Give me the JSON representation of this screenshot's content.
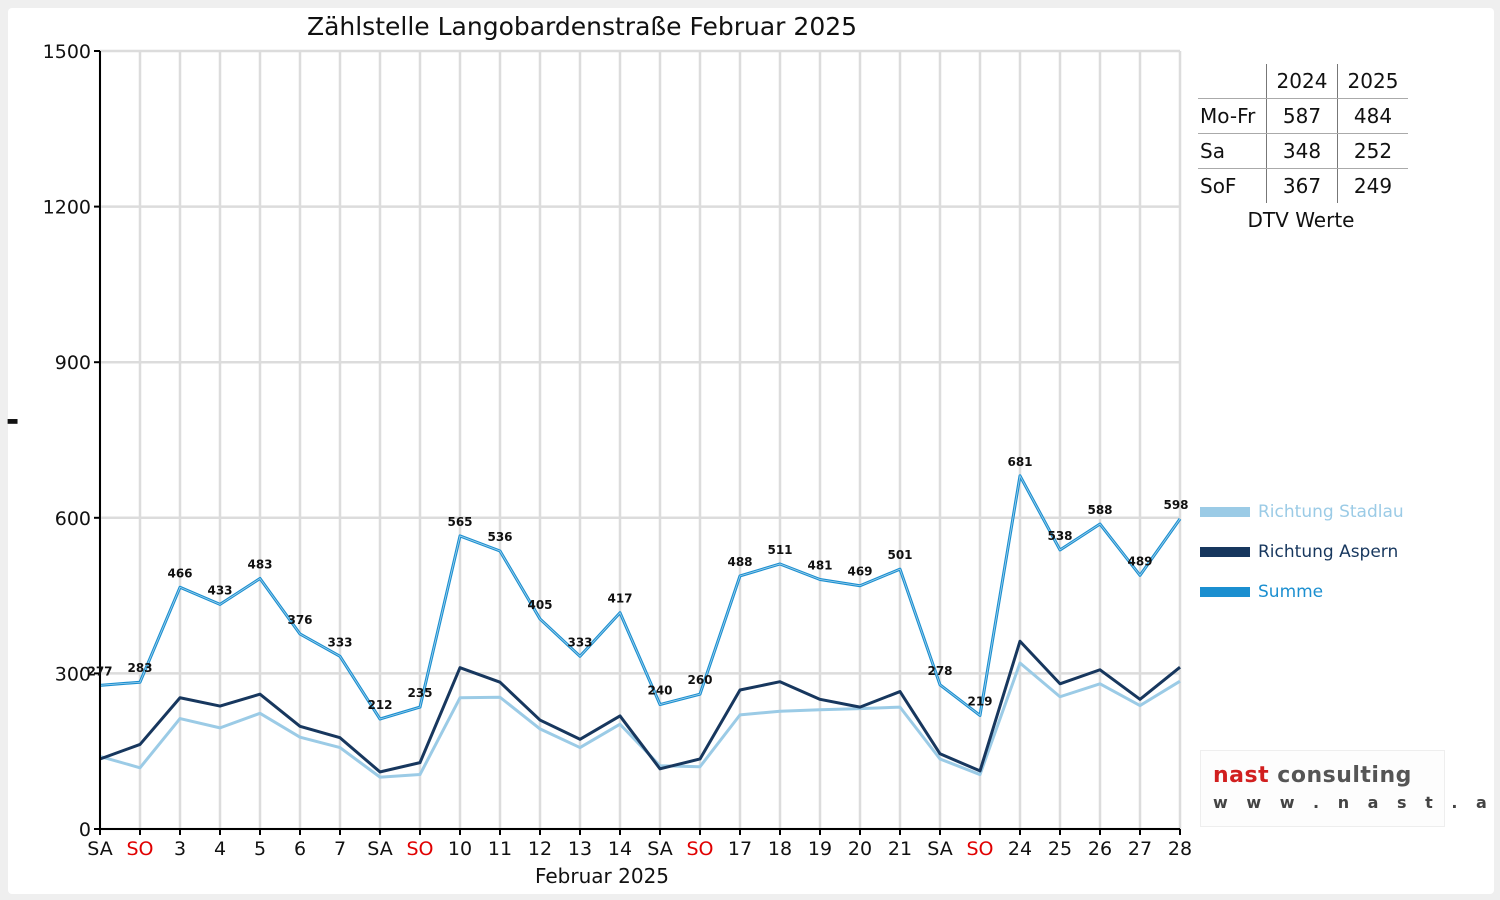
{
  "title": "Zählstelle Langobardenstraße Februar 2025",
  "xlabel": "Februar 2025",
  "dtv_table": {
    "headers": [
      "",
      "2024",
      "2025"
    ],
    "rows": [
      {
        "label": "Mo-Fr",
        "v2024": "587",
        "v2025": "484"
      },
      {
        "label": "Sa",
        "v2024": "348",
        "v2025": "252"
      },
      {
        "label": "SoF",
        "v2024": "367",
        "v2025": "249"
      }
    ],
    "caption": "DTV Werte"
  },
  "logo": {
    "brand_red": "nast",
    "brand_rest": " consulting",
    "url": "w w w . n a s t . a t"
  },
  "colors": {
    "stadlau": "#9bcbe6",
    "aspern": "#17375e",
    "summe": "#1b8fd0",
    "sunday": "#e00000",
    "grid": "#dcdcdc",
    "axis": "#000000"
  },
  "chart_data": {
    "type": "line",
    "title": "Zählstelle Langobardenstraße Februar 2025",
    "xlabel": "Februar 2025",
    "ylabel": "",
    "ylim": [
      0,
      1500
    ],
    "yticks": [
      0,
      300,
      600,
      900,
      1200,
      1500
    ],
    "grid": true,
    "legend_position": "right",
    "categories": [
      "SA",
      "SO",
      "3",
      "4",
      "5",
      "6",
      "7",
      "SA",
      "SO",
      "10",
      "11",
      "12",
      "13",
      "14",
      "SA",
      "SO",
      "17",
      "18",
      "19",
      "20",
      "21",
      "SA",
      "SO",
      "24",
      "25",
      "26",
      "27",
      "28"
    ],
    "sunday_flags": [
      false,
      true,
      false,
      false,
      false,
      false,
      false,
      false,
      true,
      false,
      false,
      false,
      false,
      false,
      false,
      true,
      false,
      false,
      false,
      false,
      false,
      false,
      true,
      false,
      false,
      false,
      false,
      false
    ],
    "series": [
      {
        "name": "Richtung Stadlau",
        "values": [
          140,
          118,
          213,
          195,
          223,
          177,
          157,
          100,
          105,
          253,
          254,
          193,
          157,
          202,
          122,
          120,
          220,
          227,
          230,
          232,
          235,
          135,
          105,
          320,
          255,
          280,
          238,
          285
        ]
      },
      {
        "name": "Richtung Aspern",
        "values": [
          135,
          163,
          253,
          237,
          260,
          198,
          176,
          110,
          128,
          311,
          283,
          210,
          173,
          218,
          116,
          135,
          268,
          284,
          250,
          235,
          265,
          145,
          112,
          362,
          280,
          307,
          250,
          312
        ]
      },
      {
        "name": "Summe",
        "values": [
          277,
          283,
          466,
          433,
          483,
          376,
          333,
          212,
          235,
          565,
          536,
          405,
          333,
          417,
          240,
          260,
          488,
          511,
          481,
          469,
          501,
          278,
          219,
          681,
          538,
          588,
          489,
          598
        ]
      }
    ],
    "data_labels_series": "Summe"
  }
}
